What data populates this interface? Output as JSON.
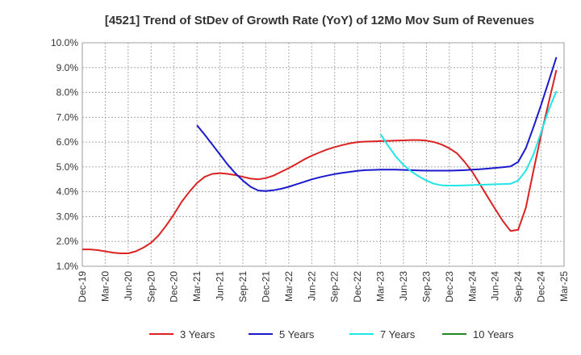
{
  "chart_data": {
    "type": "line",
    "title": "[4521]  Trend of StDev of Growth Rate (YoY) of 12Mo Mov Sum of Revenues",
    "xlabel": "",
    "ylabel": "",
    "x_ticks": [
      "Dec-19",
      "Mar-20",
      "Jun-20",
      "Sep-20",
      "Dec-20",
      "Mar-21",
      "Jun-21",
      "Sep-21",
      "Dec-21",
      "Mar-22",
      "Jun-22",
      "Sep-22",
      "Dec-22",
      "Mar-23",
      "Jun-23",
      "Sep-23",
      "Dec-23",
      "Mar-24",
      "Jun-24",
      "Sep-24",
      "Dec-24",
      "Mar-25"
    ],
    "y_ticks": [
      "1.0%",
      "2.0%",
      "3.0%",
      "4.0%",
      "5.0%",
      "6.0%",
      "7.0%",
      "8.0%",
      "9.0%",
      "10.0%"
    ],
    "ylim": [
      1.0,
      10.0
    ],
    "x_range_months": [
      0,
      63
    ],
    "grid": true,
    "legend_position": "bottom",
    "series": [
      {
        "name": "3 Years",
        "color": "#dd2222",
        "points": [
          [
            0,
            1.68
          ],
          [
            1,
            1.68
          ],
          [
            2,
            1.65
          ],
          [
            3,
            1.6
          ],
          [
            4,
            1.55
          ],
          [
            5,
            1.52
          ],
          [
            6,
            1.52
          ],
          [
            7,
            1.6
          ],
          [
            8,
            1.75
          ],
          [
            9,
            1.95
          ],
          [
            10,
            2.25
          ],
          [
            11,
            2.65
          ],
          [
            12,
            3.1
          ],
          [
            13,
            3.6
          ],
          [
            14,
            4.0
          ],
          [
            15,
            4.35
          ],
          [
            16,
            4.6
          ],
          [
            17,
            4.72
          ],
          [
            18,
            4.75
          ],
          [
            19,
            4.72
          ],
          [
            20,
            4.67
          ],
          [
            21,
            4.6
          ],
          [
            22,
            4.53
          ],
          [
            23,
            4.5
          ],
          [
            24,
            4.55
          ],
          [
            25,
            4.65
          ],
          [
            26,
            4.8
          ],
          [
            27,
            4.95
          ],
          [
            28,
            5.12
          ],
          [
            29,
            5.3
          ],
          [
            30,
            5.45
          ],
          [
            31,
            5.58
          ],
          [
            32,
            5.7
          ],
          [
            33,
            5.8
          ],
          [
            34,
            5.88
          ],
          [
            35,
            5.95
          ],
          [
            36,
            6.0
          ],
          [
            37,
            6.02
          ],
          [
            38,
            6.03
          ],
          [
            39,
            6.04
          ],
          [
            40,
            6.05
          ],
          [
            41,
            6.06
          ],
          [
            42,
            6.07
          ],
          [
            43,
            6.08
          ],
          [
            44,
            6.08
          ],
          [
            45,
            6.06
          ],
          [
            46,
            6.0
          ],
          [
            47,
            5.9
          ],
          [
            48,
            5.75
          ],
          [
            49,
            5.55
          ],
          [
            50,
            5.2
          ],
          [
            51,
            4.8
          ],
          [
            52,
            4.3
          ],
          [
            53,
            3.8
          ],
          [
            54,
            3.3
          ],
          [
            55,
            2.82
          ],
          [
            56,
            2.42
          ],
          [
            57,
            2.47
          ],
          [
            58,
            3.35
          ],
          [
            59,
            4.85
          ],
          [
            60,
            6.3
          ],
          [
            61,
            7.6
          ],
          [
            62,
            8.9
          ]
        ]
      },
      {
        "name": "5 Years",
        "color": "#1a1acc",
        "points": [
          [
            15,
            6.68
          ],
          [
            16,
            6.3
          ],
          [
            17,
            5.9
          ],
          [
            18,
            5.5
          ],
          [
            19,
            5.1
          ],
          [
            20,
            4.75
          ],
          [
            21,
            4.45
          ],
          [
            22,
            4.2
          ],
          [
            23,
            4.05
          ],
          [
            24,
            4.03
          ],
          [
            25,
            4.06
          ],
          [
            26,
            4.12
          ],
          [
            27,
            4.2
          ],
          [
            28,
            4.3
          ],
          [
            29,
            4.4
          ],
          [
            30,
            4.5
          ],
          [
            31,
            4.58
          ],
          [
            32,
            4.65
          ],
          [
            33,
            4.71
          ],
          [
            34,
            4.76
          ],
          [
            35,
            4.8
          ],
          [
            36,
            4.84
          ],
          [
            37,
            4.87
          ],
          [
            38,
            4.88
          ],
          [
            39,
            4.89
          ],
          [
            40,
            4.89
          ],
          [
            41,
            4.89
          ],
          [
            42,
            4.88
          ],
          [
            43,
            4.87
          ],
          [
            44,
            4.86
          ],
          [
            45,
            4.85
          ],
          [
            46,
            4.85
          ],
          [
            47,
            4.85
          ],
          [
            48,
            4.85
          ],
          [
            49,
            4.86
          ],
          [
            50,
            4.87
          ],
          [
            51,
            4.89
          ],
          [
            52,
            4.91
          ],
          [
            53,
            4.93
          ],
          [
            54,
            4.96
          ],
          [
            55,
            4.99
          ],
          [
            56,
            5.02
          ],
          [
            57,
            5.2
          ],
          [
            58,
            5.75
          ],
          [
            59,
            6.6
          ],
          [
            60,
            7.5
          ],
          [
            61,
            8.45
          ],
          [
            62,
            9.42
          ]
        ]
      },
      {
        "name": "7 Years",
        "color": "#22e5e5",
        "points": [
          [
            39,
            6.32
          ],
          [
            40,
            5.85
          ],
          [
            41,
            5.42
          ],
          [
            42,
            5.08
          ],
          [
            43,
            4.82
          ],
          [
            44,
            4.62
          ],
          [
            45,
            4.45
          ],
          [
            46,
            4.32
          ],
          [
            47,
            4.26
          ],
          [
            48,
            4.25
          ],
          [
            49,
            4.25
          ],
          [
            50,
            4.26
          ],
          [
            51,
            4.27
          ],
          [
            52,
            4.28
          ],
          [
            53,
            4.29
          ],
          [
            54,
            4.3
          ],
          [
            55,
            4.31
          ],
          [
            56,
            4.32
          ],
          [
            57,
            4.45
          ],
          [
            58,
            4.85
          ],
          [
            59,
            5.5
          ],
          [
            60,
            6.4
          ],
          [
            61,
            7.3
          ],
          [
            62,
            8.05
          ]
        ]
      },
      {
        "name": "10 Years",
        "color": "#228822",
        "points": []
      }
    ]
  }
}
